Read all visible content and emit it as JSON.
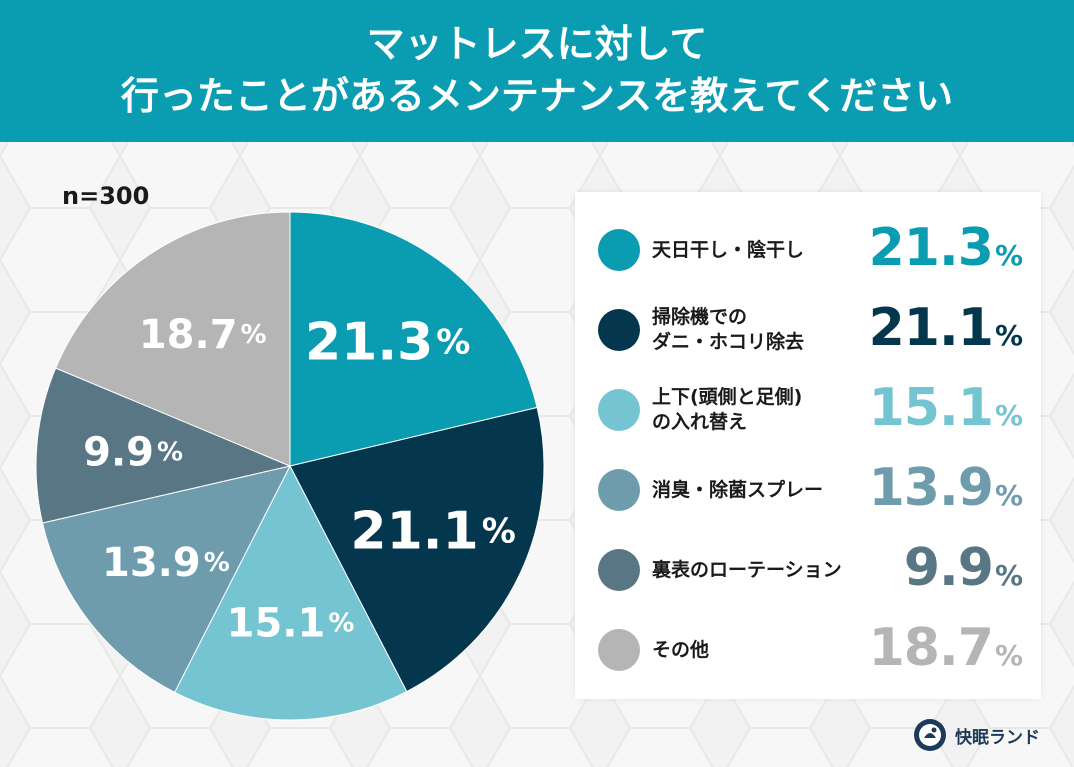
{
  "header": {
    "title_line1": "マットレスに対して",
    "title_line2": "行ったことがあるメンテナンスを教えてください"
  },
  "sample_label": "n=300",
  "logo": {
    "text": "快眠ランド",
    "icon": "kaimin-land-logo-icon"
  },
  "chart_data": {
    "type": "pie",
    "unit": "%",
    "categories": [
      "天日干し・陰干し",
      "掃除機でのダニ・ホコリ除去",
      "上下(頭側と足側)の入れ替え",
      "消臭・除菌スプレー",
      "裏表のローテーション",
      "その他"
    ],
    "values": [
      21.3,
      21.1,
      15.1,
      13.9,
      9.9,
      18.7
    ],
    "labels": [
      "21.3",
      "21.1",
      "15.1",
      "13.9",
      "9.9",
      "18.7"
    ],
    "colors": [
      "#0a9db1",
      "#04374e",
      "#75c4d2",
      "#6f9cad",
      "#587684",
      "#b5b5b5"
    ],
    "legend_placement": "right"
  },
  "legend": {
    "items": [
      {
        "lines": [
          "天日干し・陰干し"
        ],
        "value": "21.3",
        "unit": "%",
        "color": "#0a9db1"
      },
      {
        "lines": [
          "掃除機での",
          "ダニ・ホコリ除去"
        ],
        "value": "21.1",
        "unit": "%",
        "color": "#04374e"
      },
      {
        "lines": [
          "上下(頭側と足側)",
          "の入れ替え"
        ],
        "value": "15.1",
        "unit": "%",
        "color": "#75c4d2"
      },
      {
        "lines": [
          "消臭・除菌スプレー"
        ],
        "value": "13.9",
        "unit": "%",
        "color": "#6f9cad"
      },
      {
        "lines": [
          "裏表のローテーション"
        ],
        "value": "9.9",
        "unit": "%",
        "color": "#587684"
      },
      {
        "lines": [
          "その他"
        ],
        "value": "18.7",
        "unit": "%",
        "color": "#b5b5b5"
      }
    ]
  }
}
